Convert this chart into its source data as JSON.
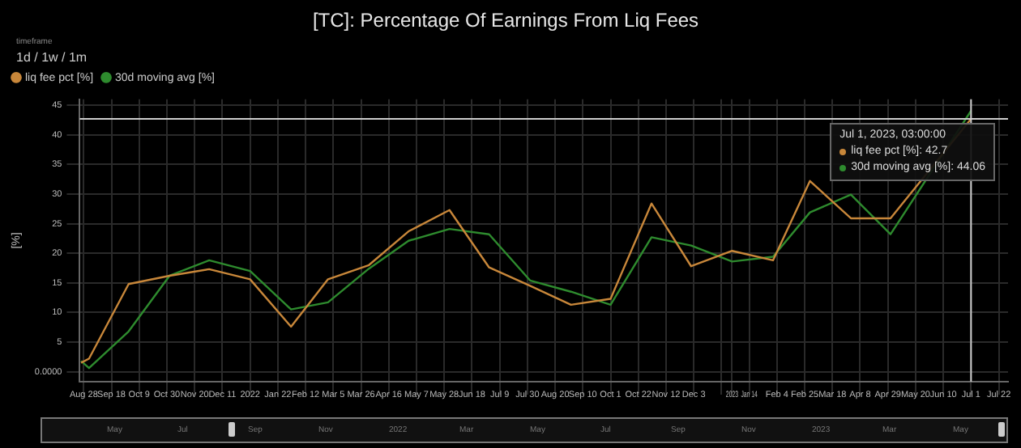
{
  "chart_data": [
    {
      "type": "line",
      "title": "[TC]: Percentage Of Earnings From Liq Fees",
      "ylabel": "[%]",
      "x": [
        "2021-08-26",
        "2021-09-01",
        "2021-10-01",
        "2021-11-01",
        "2021-12-01",
        "2022-01-01",
        "2022-02-01",
        "2022-03-01",
        "2022-04-01",
        "2022-05-01",
        "2022-06-01",
        "2022-07-01",
        "2022-08-01",
        "2022-09-01",
        "2022-10-01",
        "2022-11-01",
        "2022-12-01",
        "2023-01-01",
        "2023-02-01",
        "2023-03-01",
        "2023-04-01",
        "2023-05-01",
        "2023-06-01",
        "2023-07-01"
      ],
      "series": [
        {
          "name": "liq fee pct [%]",
          "color": "#c8873a",
          "values": [
            1.5,
            2.2,
            14.8,
            16.2,
            17.3,
            15.6,
            7.6,
            15.6,
            18.0,
            23.7,
            27.3,
            17.6,
            14.5,
            11.3,
            12.3,
            28.4,
            17.8,
            20.4,
            18.8,
            32.2,
            25.9,
            25.9,
            null,
            42.7
          ]
        },
        {
          "name": "30d moving avg [%]",
          "color": "#2e8b2e",
          "values": [
            1.8,
            0.6,
            6.8,
            16.2,
            18.8,
            17.0,
            10.5,
            11.7,
            17.4,
            22.1,
            24.1,
            23.2,
            15.4,
            13.5,
            11.3,
            22.7,
            21.3,
            18.6,
            19.4,
            26.9,
            29.9,
            23.2,
            null,
            44.06
          ]
        }
      ],
      "xlim": [
        "2021-08-25",
        "2023-07-29"
      ],
      "xticks": [
        {
          "value": "2021-08-28",
          "label": "Aug 28"
        },
        {
          "value": "2021-09-18",
          "label": "Sep 18"
        },
        {
          "value": "2021-10-09",
          "label": "Oct 9"
        },
        {
          "value": "2021-10-30",
          "label": "Oct 30"
        },
        {
          "value": "2021-11-20",
          "label": "Nov 20"
        },
        {
          "value": "2021-12-11",
          "label": "Dec 11"
        },
        {
          "value": "2022-01-01",
          "label": "2022"
        },
        {
          "value": "2022-01-22",
          "label": "Jan 22"
        },
        {
          "value": "2022-02-12",
          "label": "Feb 12"
        },
        {
          "value": "2022-03-05",
          "label": "Mar 5"
        },
        {
          "value": "2022-03-26",
          "label": "Mar 26"
        },
        {
          "value": "2022-04-16",
          "label": "Apr 16"
        },
        {
          "value": "2022-05-07",
          "label": "May 7"
        },
        {
          "value": "2022-05-28",
          "label": "May 28"
        },
        {
          "value": "2022-06-18",
          "label": "Jun 18"
        },
        {
          "value": "2022-07-09",
          "label": "Jul 9"
        },
        {
          "value": "2022-07-30",
          "label": "Jul 30"
        },
        {
          "value": "2022-08-20",
          "label": "Aug 20"
        },
        {
          "value": "2022-09-10",
          "label": "Sep 10"
        },
        {
          "value": "2022-10-01",
          "label": "Oct 1"
        },
        {
          "value": "2022-10-22",
          "label": "Oct 22"
        },
        {
          "value": "2022-11-12",
          "label": "Nov 12"
        },
        {
          "value": "2022-12-03",
          "label": "Dec 3"
        },
        {
          "value": "2022-12-24",
          "label": null
        },
        {
          "value": "2023-01-01",
          "label": "2023"
        },
        {
          "value": "2023-01-14",
          "label": "Jan 14"
        },
        {
          "value": "2023-02-04",
          "label": "Feb 4"
        },
        {
          "value": "2023-02-25",
          "label": "Feb 25"
        },
        {
          "value": "2023-03-18",
          "label": "Mar 18"
        },
        {
          "value": "2023-04-08",
          "label": "Apr 8"
        },
        {
          "value": "2023-04-29",
          "label": "Apr 29"
        },
        {
          "value": "2023-05-20",
          "label": "May 20"
        },
        {
          "value": "2023-06-10",
          "label": "Jun 10"
        },
        {
          "value": "2023-07-01",
          "label": "Jul 1"
        },
        {
          "value": "2023-07-22",
          "label": "Jul 22"
        }
      ],
      "ylim": [
        -1.7,
        46
      ],
      "yticks": [
        {
          "value": 0,
          "label": "0.0000"
        },
        5,
        10,
        15,
        20,
        25,
        30,
        35,
        40,
        45
      ],
      "ref_lines": [
        {
          "axis": "x",
          "value": "2023-07-01",
          "color": "#cccccc"
        },
        {
          "axis": "y",
          "value": 42.7,
          "color": "#cccccc"
        }
      ],
      "grid": true,
      "legend": "top left",
      "marker": "none",
      "line_style": "solid",
      "annotations": [
        "timeframe",
        "1d / 1w / 1m",
        "Jul 1, 2023, 03:00:00",
        "liq fee pct [%]: 42.7",
        "30d moving avg [%]: 44.06"
      ]
    },
    {
      "type": "other",
      "annotations": [
        "May",
        "Jul",
        "Sep",
        "Nov",
        "2022",
        "Mar",
        "May",
        "Jul",
        "Sep",
        "Nov",
        "2023",
        "Mar",
        "May"
      ]
    }
  ]
}
